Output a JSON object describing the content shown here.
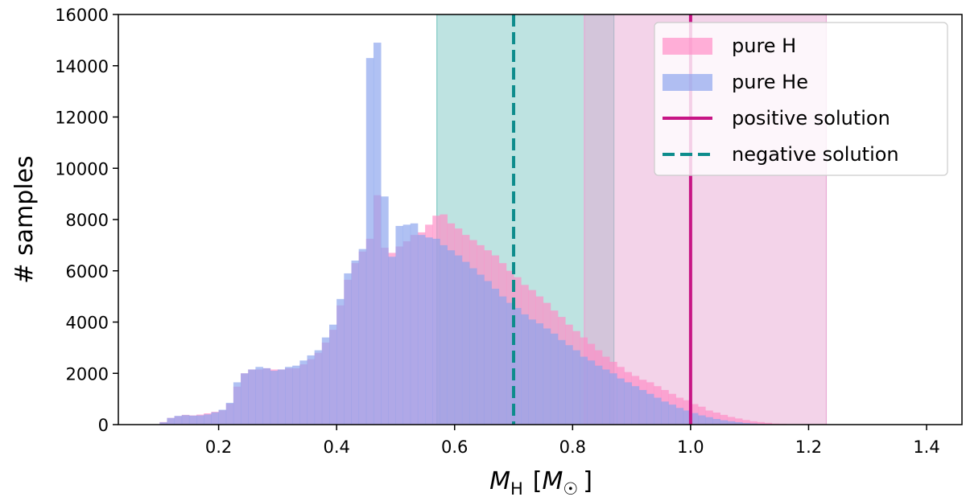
{
  "chart_data": {
    "type": "bar",
    "title": "",
    "xlabel_parts": {
      "m": "M",
      "msub": "H",
      "open": "[",
      "msun": "M",
      "sunsub": "☉",
      "close": "]"
    },
    "ylabel": "# samples",
    "xlim": [
      0.03,
      1.46
    ],
    "ylim": [
      0,
      16000
    ],
    "xticks": [
      "0.2",
      "0.4",
      "0.6",
      "0.8",
      "1.0",
      "1.2",
      "1.4"
    ],
    "yticks": [
      "0",
      "2000",
      "4000",
      "6000",
      "8000",
      "10000",
      "12000",
      "14000",
      "16000"
    ],
    "bin_start": 0.1,
    "bin_width": 0.0125,
    "series": [
      {
        "name": "pure H",
        "color": "#ff8cc6",
        "values": [
          100,
          260,
          330,
          380,
          360,
          390,
          440,
          500,
          560,
          820,
          1480,
          2000,
          2150,
          2150,
          2200,
          2150,
          2150,
          2200,
          2200,
          2350,
          2550,
          2800,
          3200,
          3700,
          4650,
          5650,
          6300,
          6750,
          7250,
          8950,
          6900,
          6700,
          6950,
          7150,
          7400,
          7500,
          7800,
          8150,
          8200,
          7850,
          7650,
          7400,
          7200,
          7000,
          6800,
          6600,
          6300,
          6000,
          5750,
          5450,
          5250,
          5000,
          4750,
          4450,
          4200,
          3900,
          3650,
          3400,
          3150,
          2900,
          2650,
          2450,
          2250,
          2050,
          1900,
          1750,
          1650,
          1500,
          1350,
          1200,
          1050,
          950,
          800,
          700,
          550,
          470,
          380,
          300,
          240,
          180,
          130,
          100,
          70,
          40,
          30
        ]
      },
      {
        "name": "pure He",
        "color": "#8aa3ee",
        "values": [
          90,
          260,
          340,
          370,
          350,
          360,
          400,
          480,
          580,
          850,
          1650,
          2000,
          2150,
          2250,
          2200,
          2100,
          2150,
          2250,
          2300,
          2500,
          2700,
          2900,
          3400,
          3900,
          4900,
          5900,
          6400,
          6850,
          14300,
          14900,
          8900,
          6550,
          7750,
          7800,
          7850,
          7400,
          7300,
          7250,
          7000,
          6800,
          6600,
          6350,
          6100,
          5850,
          5600,
          5300,
          5000,
          4750,
          4550,
          4300,
          4100,
          3950,
          3750,
          3550,
          3300,
          3100,
          2900,
          2650,
          2500,
          2300,
          2150,
          2000,
          1800,
          1650,
          1500,
          1350,
          1200,
          1050,
          900,
          780,
          650,
          550,
          450,
          360,
          290,
          220,
          170,
          130,
          95,
          65,
          45,
          30,
          20,
          12,
          8
        ]
      }
    ],
    "shaded_regions": [
      {
        "name": "negative solution range",
        "x0": 0.57,
        "x1": 0.87,
        "color": "#7ec8c3"
      },
      {
        "name": "positive solution range",
        "x0": 0.82,
        "x1": 1.23,
        "color": "#e8a8d4"
      }
    ],
    "lines": [
      {
        "name": "positive solution",
        "x": 1.0,
        "color": "#c71585",
        "style": "solid"
      },
      {
        "name": "negative solution",
        "x": 0.7,
        "color": "#0e8c8c",
        "style": "dashed"
      }
    ],
    "legend": {
      "position": "top-right",
      "entries": [
        {
          "label": "pure H",
          "kind": "patch",
          "color": "#ff8cc6"
        },
        {
          "label": "pure He",
          "kind": "patch",
          "color": "#8aa3ee"
        },
        {
          "label": "positive solution",
          "kind": "line",
          "color": "#c71585",
          "style": "solid"
        },
        {
          "label": "negative solution",
          "kind": "line",
          "color": "#0e8c8c",
          "style": "dashed"
        }
      ]
    }
  }
}
